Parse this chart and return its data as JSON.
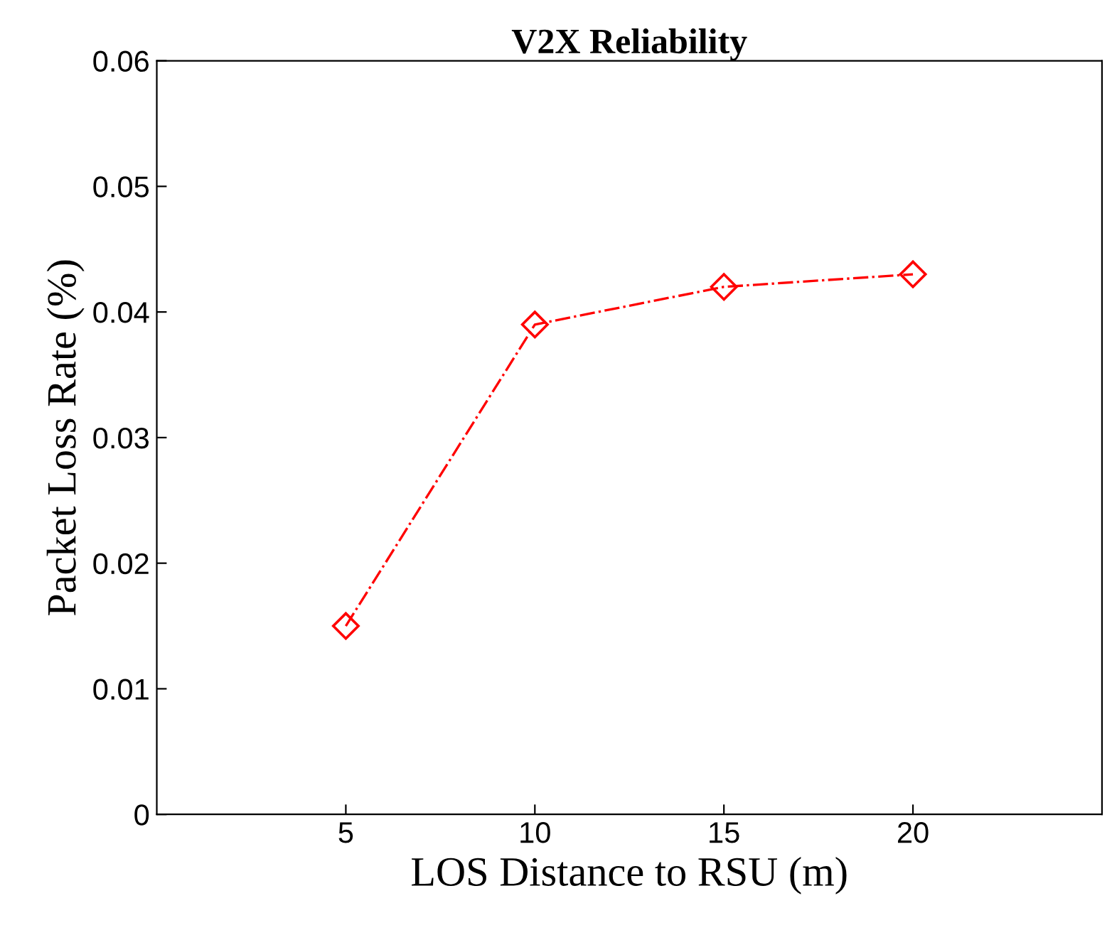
{
  "chart_data": {
    "type": "line",
    "title": "V2X Reliability",
    "xlabel": "LOS Distance to RSU (m)",
    "ylabel": "Packet Loss Rate (%)",
    "x": [
      5,
      10,
      15,
      20
    ],
    "series": [
      {
        "color": "#ff0000",
        "values": [
          0.015,
          0.039,
          0.042,
          0.043
        ]
      }
    ],
    "xlim": [
      0,
      25
    ],
    "xticks": [
      5,
      10,
      15,
      20
    ],
    "ylim": [
      0,
      0.06
    ],
    "yticks": [
      0,
      0.01,
      0.02,
      0.03,
      0.04,
      0.05,
      0.06
    ],
    "marker": "diamond",
    "line_style": "dashdot",
    "grid": false,
    "legend": false
  }
}
